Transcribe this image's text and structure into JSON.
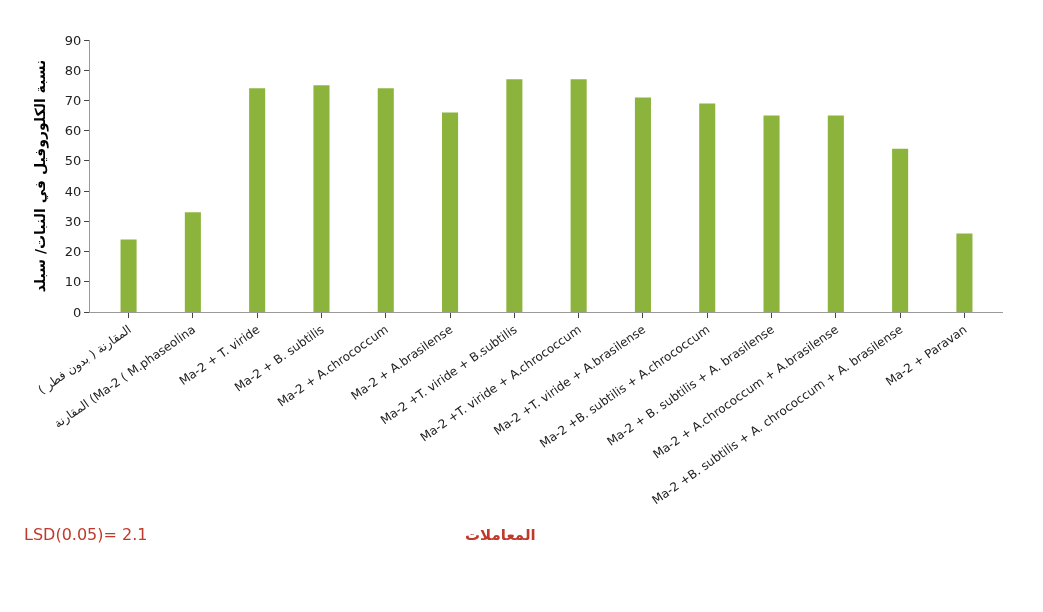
{
  "chart_data": {
    "type": "bar",
    "xlabel": "المعاملات",
    "ylabel": "نسبة الكلوروفيل في النبات/ سبلد",
    "categories": [
      "المقارنة ( بدون فطر )",
      "المقارنة (Ma-2 ( M.phaseolina",
      "Ma-2 + T. viride",
      "Ma-2 + B. subtilis",
      "Ma-2 + A.chrococcum",
      "Ma-2 + A.brasilense",
      "Ma-2 +T. viride + B.subtilis",
      "Ma-2 +T. viride + A.chrococcum",
      "Ma-2 +T. viride + A.brasilense",
      "Ma-2 +B. subtilis + A.chrococcum",
      "Ma-2 + B. subtilis + A. brasilense",
      "Ma-2 + A.chrococcum + A.brasilense",
      "Ma-2 +B. subtilis + A. chrococcum + A. brasilense",
      "Ma-2 + Paravan"
    ],
    "values": [
      24,
      33,
      74,
      75,
      74,
      66,
      77,
      77,
      71,
      69,
      65,
      65,
      54,
      26
    ],
    "color": "#8cb43c",
    "ylim": [
      0,
      90
    ],
    "yticks": [
      0,
      10,
      20,
      30,
      40,
      50,
      60,
      70,
      80,
      90
    ],
    "annotations": [
      "LSD(0.05)= 2.1"
    ]
  }
}
